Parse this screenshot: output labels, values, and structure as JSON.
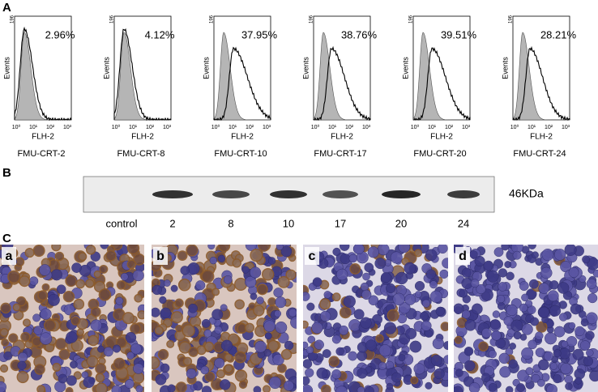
{
  "panel_a": {
    "label": "A",
    "y_axis_label": "Events",
    "y_tick": "196",
    "x_axis_label": "FLH-2",
    "x_ticks": [
      "10⁰",
      "10¹",
      "10²",
      "10³"
    ],
    "plots": [
      {
        "name": "FMU-CRT-2",
        "percent": "2.96%"
      },
      {
        "name": "FMU-CRT-8",
        "percent": "4.12%"
      },
      {
        "name": "FMU-CRT-10",
        "percent": "37.95%"
      },
      {
        "name": "FMU-CRT-17",
        "percent": "38.76%"
      },
      {
        "name": "FMU-CRT-20",
        "percent": "39.51%"
      },
      {
        "name": "FMU-CRT-24",
        "percent": "28.21%"
      }
    ]
  },
  "panel_b": {
    "label": "B",
    "band_label": "46KDa",
    "lanes": [
      "control",
      "2",
      "8",
      "10",
      "17",
      "20",
      "24"
    ]
  },
  "panel_c": {
    "label": "C",
    "images": [
      "a",
      "b",
      "c",
      "d"
    ]
  }
}
